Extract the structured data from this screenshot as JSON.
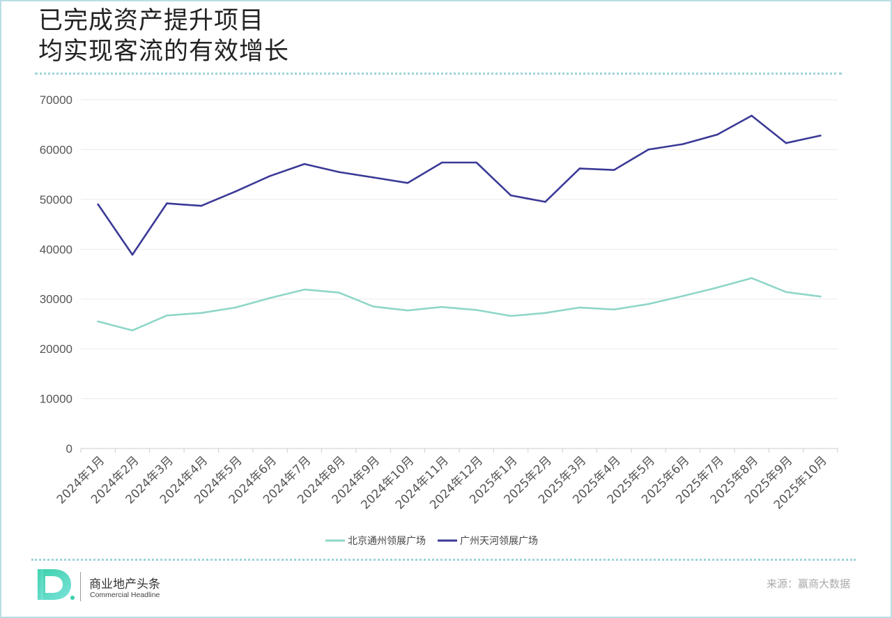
{
  "title_lines": [
    "已完成资产提升项目",
    "均实现客流的有效增长"
  ],
  "footer": {
    "brand_name": "商业地产头条",
    "brand_sub": "Commercial Headline",
    "source": "来源：赢商大数据"
  },
  "colors": {
    "series1": "#8ed6c8",
    "series2": "#3b3996",
    "grid": "#e9e9e9",
    "axis": "#cccccc",
    "dots": "#9fd3d8",
    "logo_gradient_start": "#3ad0a8",
    "logo_gradient_end": "#7be3dc"
  },
  "chart_data": {
    "type": "line",
    "x": [
      "2024年1月",
      "2024年2月",
      "2024年3月",
      "2024年4月",
      "2024年5月",
      "2024年6月",
      "2024年7月",
      "2024年8月",
      "2024年9月",
      "2024年10月",
      "2024年11月",
      "2024年12月",
      "2025年1月",
      "2025年2月",
      "2025年3月",
      "2025年4月",
      "2025年5月",
      "2025年6月",
      "2025年7月",
      "2025年8月",
      "2025年9月",
      "2025年10月"
    ],
    "series": [
      {
        "name": "北京通州领展广场",
        "color": "#8ed6c8",
        "values": [
          25500,
          23700,
          26700,
          27200,
          28300,
          30200,
          31900,
          31300,
          28500,
          27700,
          28400,
          27800,
          26600,
          27200,
          28300,
          27900,
          29000,
          30600,
          32300,
          34200,
          31400,
          30500
        ]
      },
      {
        "name": "广州天河领展广场",
        "color": "#3b3996",
        "values": [
          49000,
          38900,
          49200,
          48700,
          51600,
          54700,
          57100,
          55500,
          54400,
          53300,
          57400,
          57400,
          50800,
          49500,
          56200,
          55900,
          60000,
          61100,
          63000,
          66800,
          61300,
          62800
        ]
      }
    ],
    "y_ticks": [
      0,
      10000,
      20000,
      30000,
      40000,
      50000,
      60000,
      70000
    ],
    "ylim": [
      0,
      70000
    ],
    "grid": true,
    "legend": "bottom-center"
  }
}
